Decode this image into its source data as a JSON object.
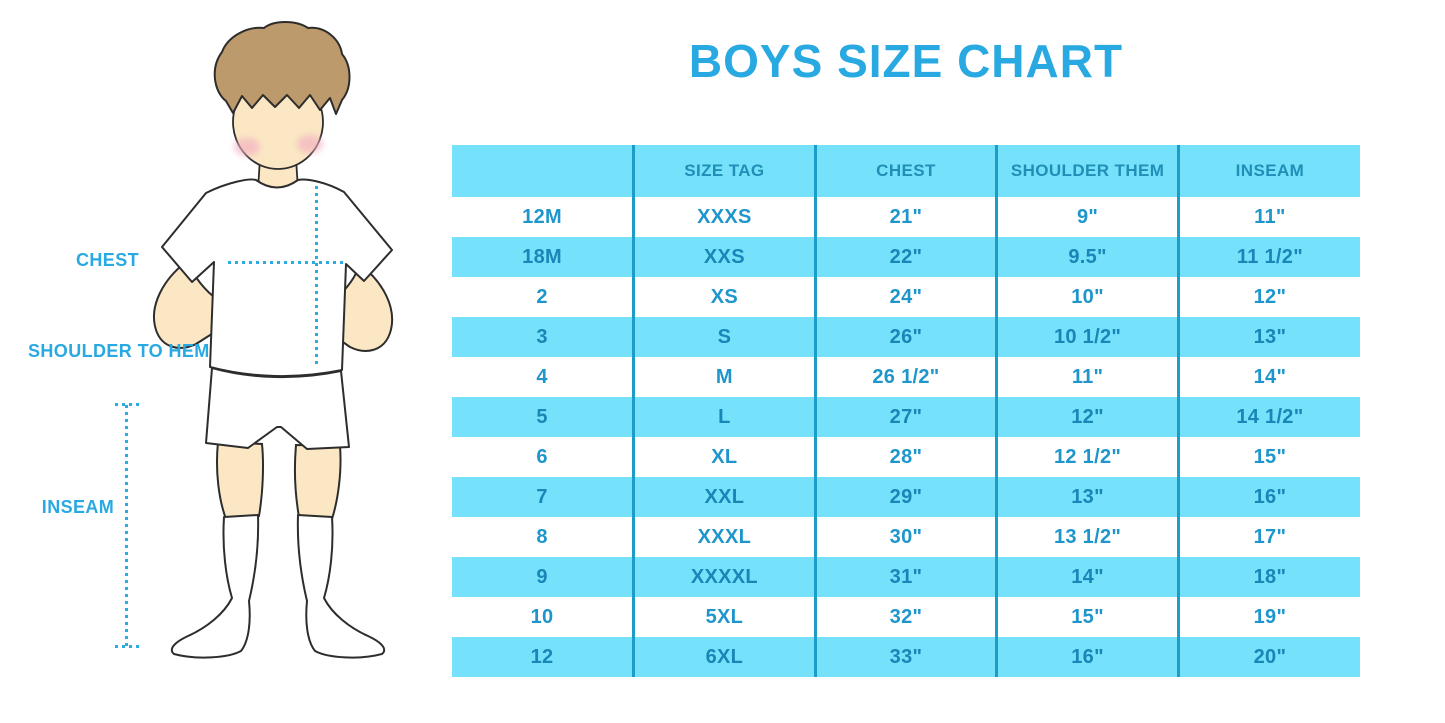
{
  "title": "BOYS SIZE CHART",
  "figure": {
    "labels": {
      "chest": "CHEST",
      "shoulder_to_hem": "SHOULDER TO HEM",
      "inseam": "INSEAM"
    }
  },
  "colors": {
    "accent_blue": "#29A9E1",
    "dotted_line_cyan": "#2BABE2",
    "table_band_blue": "#76E1FB",
    "table_divider_teal": "#1B9DC8",
    "table_text_blue": "#1E96CB",
    "hair_brown": "#BC9A6C",
    "skin_tone": "#FBE7C4",
    "blush_pink": "#F2AEC0"
  },
  "chart_data": {
    "type": "table",
    "title": "BOYS SIZE CHART",
    "columns": [
      "",
      "SIZE TAG",
      "CHEST",
      "SHOULDER THEM",
      "INSEAM"
    ],
    "rows": [
      [
        "12M",
        "XXXS",
        "21\"",
        "9\"",
        "11\""
      ],
      [
        "18M",
        "XXS",
        "22\"",
        "9.5\"",
        "11 1/2\""
      ],
      [
        "2",
        "XS",
        "24\"",
        "10\"",
        "12\""
      ],
      [
        "3",
        "S",
        "26\"",
        "10 1/2\"",
        "13\""
      ],
      [
        "4",
        "M",
        "26 1/2\"",
        "11\"",
        "14\""
      ],
      [
        "5",
        "L",
        "27\"",
        "12\"",
        "14 1/2\""
      ],
      [
        "6",
        "XL",
        "28\"",
        "12 1/2\"",
        "15\""
      ],
      [
        "7",
        "XXL",
        "29\"",
        "13\"",
        "16\""
      ],
      [
        "8",
        "XXXL",
        "30\"",
        "13 1/2\"",
        "17\""
      ],
      [
        "9",
        "XXXXL",
        "31\"",
        "14\"",
        "18\""
      ],
      [
        "10",
        "5XL",
        "32\"",
        "15\"",
        "19\""
      ],
      [
        "12",
        "6XL",
        "33\"",
        "16\"",
        "20\""
      ]
    ],
    "layout": {
      "header_background": "#76E1FB",
      "alternating_rows": "white / light-blue starting white",
      "column_dividers": "vertical teal lines between all 5 columns"
    }
  }
}
